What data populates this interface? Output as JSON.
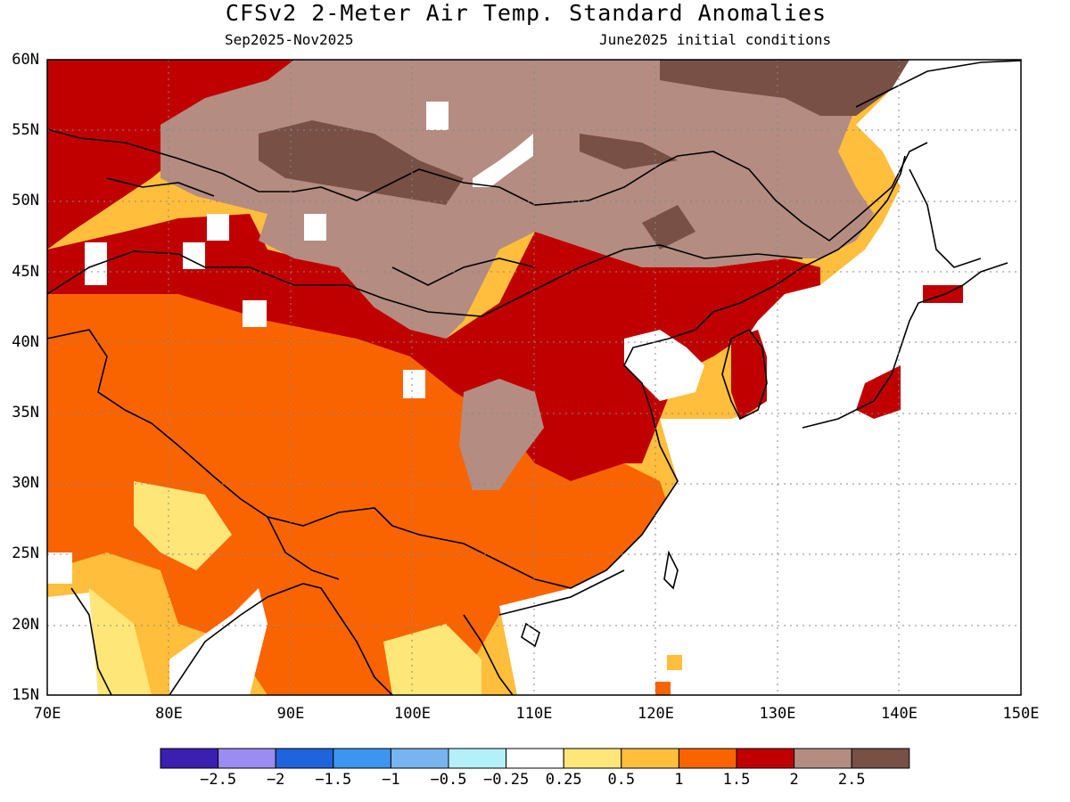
{
  "title": "CFSv2 2-Meter Air Temp. Standard Anomalies",
  "period": "Sep2025-Nov2025",
  "initial_conditions": "June2025 initial conditions",
  "lat_labels": [
    "60N",
    "55N",
    "50N",
    "45N",
    "40N",
    "35N",
    "30N",
    "25N",
    "20N",
    "15N"
  ],
  "lon_labels": [
    "70E",
    "80E",
    "90E",
    "100E",
    "110E",
    "120E",
    "130E",
    "140E",
    "150E"
  ],
  "colorbar": {
    "colors": [
      "#3a1fb0",
      "#9a8cf0",
      "#1e64dc",
      "#3c96f0",
      "#78b4f0",
      "#b4f0fa",
      "#ffffff",
      "#ffe678",
      "#ffbe3c",
      "#fa6400",
      "#c00000",
      "#b48c82",
      "#785046"
    ],
    "labels": [
      "-2.5",
      "-2",
      "-1.5",
      "-1",
      "-0.5",
      "-0.25",
      "0.25",
      "0.5",
      "1",
      "1.5",
      "2",
      "2.5"
    ]
  }
}
